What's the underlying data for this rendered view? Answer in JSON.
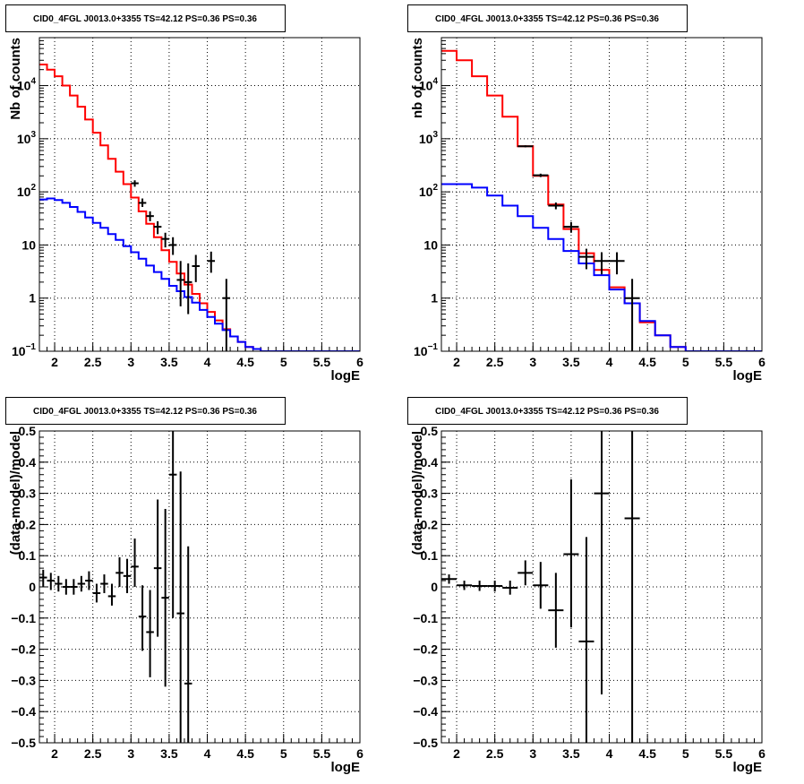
{
  "chart_data": [
    {
      "type": "line",
      "panel": "top-left",
      "title": "CID0_4FGL J0013.0+3355 TS=42.12 PS=0.36 PS=0.36",
      "xlabel": "logE",
      "ylabel": "Nb of counts",
      "y_scale": "log",
      "xlim": [
        1.8,
        6.0
      ],
      "ylim": [
        0.1,
        80000
      ],
      "grid": true,
      "x_ticks": [
        "2",
        "2.5",
        "3",
        "3.5",
        "4",
        "4.5",
        "5",
        "5.5",
        "6"
      ],
      "y_ticks": [
        {
          "base": "10",
          "exp": "−1",
          "v": 0.1
        },
        {
          "base": "1",
          "exp": "",
          "v": 1
        },
        {
          "base": "10",
          "exp": "",
          "v": 10
        },
        {
          "base": "10",
          "exp": "2",
          "v": 100
        },
        {
          "base": "10",
          "exp": "3",
          "v": 1000
        },
        {
          "base": "10",
          "exp": "4",
          "v": 10000
        }
      ],
      "series": [
        {
          "color": "#ff0000",
          "kind": "step",
          "edges": [
            1.8,
            1.9,
            2.0,
            2.1,
            2.2,
            2.3,
            2.4,
            2.5,
            2.6,
            2.7,
            2.8,
            2.9,
            3.0,
            3.1,
            3.2,
            3.3,
            3.4,
            3.5,
            3.6,
            3.7,
            3.8,
            3.9,
            4.0,
            4.1,
            4.2,
            4.3,
            4.4,
            4.5,
            4.6,
            4.7,
            4.8,
            4.9,
            5.0,
            5.1,
            5.2,
            5.3,
            5.4,
            5.5,
            5.6,
            5.7,
            5.8,
            5.9,
            6.0
          ],
          "values": [
            25000,
            20000,
            15000,
            10000,
            6500,
            4000,
            2300,
            1300,
            750,
            420,
            240,
            140,
            78,
            43,
            25,
            14,
            8,
            4.8,
            2.9,
            1.8,
            1.2,
            0.8,
            0.55,
            0.38,
            0.26,
            0.19,
            0.15,
            0.12,
            0.11,
            0.1,
            0.1,
            0.1,
            0.1,
            0.1,
            0.1,
            0.1,
            0.1,
            0.1,
            0.1,
            0.1,
            0.1,
            0.1
          ]
        },
        {
          "color": "#0000ff",
          "kind": "step",
          "edges": [
            1.8,
            1.9,
            2.0,
            2.1,
            2.2,
            2.3,
            2.4,
            2.5,
            2.6,
            2.7,
            2.8,
            2.9,
            3.0,
            3.1,
            3.2,
            3.3,
            3.4,
            3.5,
            3.6,
            3.7,
            3.8,
            3.9,
            4.0,
            4.1,
            4.2,
            4.3,
            4.4,
            4.5,
            4.6,
            4.7,
            4.8,
            4.9,
            5.0,
            5.1,
            5.2,
            5.3,
            5.4,
            5.5,
            5.6,
            5.7,
            5.8,
            5.9,
            6.0
          ],
          "values": [
            72,
            75,
            70,
            62,
            52,
            42,
            33,
            26,
            21,
            16,
            12.5,
            9.5,
            7.3,
            5.5,
            4.1,
            3.1,
            2.3,
            1.7,
            1.35,
            1.05,
            0.82,
            0.6,
            0.44,
            0.33,
            0.25,
            0.19,
            0.15,
            0.12,
            0.11,
            0.1,
            0.1,
            0.1,
            0.1,
            0.1,
            0.1,
            0.1,
            0.1,
            0.1,
            0.1,
            0.1,
            0.1,
            0.1
          ]
        },
        {
          "color": "#000000",
          "kind": "errorbars",
          "points": [
            {
              "x": 3.05,
              "y": 145,
              "xerr": 0.05,
              "ylo": 125,
              "yhi": 165
            },
            {
              "x": 3.15,
              "y": 62,
              "xerr": 0.05,
              "ylo": 52,
              "yhi": 75
            },
            {
              "x": 3.25,
              "y": 35,
              "xerr": 0.05,
              "ylo": 28,
              "yhi": 43
            },
            {
              "x": 3.35,
              "y": 22,
              "xerr": 0.05,
              "ylo": 16,
              "yhi": 28
            },
            {
              "x": 3.45,
              "y": 13,
              "xerr": 0.05,
              "ylo": 9,
              "yhi": 17
            },
            {
              "x": 3.55,
              "y": 10,
              "xerr": 0.05,
              "ylo": 6.5,
              "yhi": 14
            },
            {
              "x": 3.65,
              "y": 2.2,
              "xerr": 0.05,
              "ylo": 0.7,
              "yhi": 5.0
            },
            {
              "x": 3.75,
              "y": 2,
              "xerr": 0.05,
              "ylo": 0.5,
              "yhi": 4.5
            },
            {
              "x": 3.85,
              "y": 4,
              "xerr": 0.05,
              "ylo": 2.0,
              "yhi": 6.5
            },
            {
              "x": 4.05,
              "y": 5,
              "xerr": 0.05,
              "ylo": 3.0,
              "yhi": 7.5
            },
            {
              "x": 4.25,
              "y": 1,
              "xerr": 0.05,
              "ylo": 0.1,
              "yhi": 2.3
            }
          ]
        }
      ]
    },
    {
      "type": "line",
      "panel": "top-right",
      "title": "CID0_4FGL J0013.0+3355 TS=42.12 PS=0.36 PS=0.36",
      "xlabel": "logE",
      "ylabel": "nb of counts",
      "y_scale": "log",
      "xlim": [
        1.8,
        6.0
      ],
      "ylim": [
        0.1,
        80000
      ],
      "grid": true,
      "x_ticks": [
        "2",
        "2.5",
        "3",
        "3.5",
        "4",
        "4.5",
        "5",
        "5.5",
        "6"
      ],
      "y_ticks": [
        {
          "base": "10",
          "exp": "−1",
          "v": 0.1
        },
        {
          "base": "1",
          "exp": "",
          "v": 1
        },
        {
          "base": "10",
          "exp": "",
          "v": 10
        },
        {
          "base": "10",
          "exp": "2",
          "v": 100
        },
        {
          "base": "10",
          "exp": "3",
          "v": 1000
        },
        {
          "base": "10",
          "exp": "4",
          "v": 10000
        }
      ],
      "series": [
        {
          "color": "#ff0000",
          "kind": "step",
          "edges": [
            1.8,
            2.0,
            2.2,
            2.4,
            2.6,
            2.8,
            3.0,
            3.2,
            3.4,
            3.6,
            3.8,
            4.0,
            4.2,
            4.4,
            4.6,
            4.8,
            5.0,
            5.2,
            5.4,
            5.6,
            5.8,
            6.0
          ],
          "values": [
            45000,
            30000,
            15000,
            6500,
            2600,
            720,
            200,
            58,
            20,
            7,
            3.4,
            1.6,
            0.8,
            0.35,
            0.2,
            0.12,
            0.1,
            0.1,
            0.1,
            0.1,
            0.1
          ]
        },
        {
          "color": "#0000ff",
          "kind": "step",
          "edges": [
            1.8,
            2.0,
            2.2,
            2.4,
            2.6,
            2.8,
            3.0,
            3.2,
            3.4,
            3.6,
            3.8,
            4.0,
            4.2,
            4.4,
            4.6,
            4.8,
            5.0,
            5.2,
            5.4,
            5.6,
            5.8,
            6.0
          ],
          "values": [
            140,
            140,
            120,
            85,
            55,
            35,
            21,
            13,
            7.7,
            4.5,
            2.7,
            1.45,
            0.8,
            0.37,
            0.2,
            0.12,
            0.1,
            0.1,
            0.1,
            0.1,
            0.1
          ]
        },
        {
          "color": "#000000",
          "kind": "errorbars",
          "points": [
            {
              "x": 2.9,
              "y": 720,
              "xerr": 0.1,
              "ylo": 690,
              "yhi": 750
            },
            {
              "x": 3.1,
              "y": 205,
              "xerr": 0.1,
              "ylo": 190,
              "yhi": 220
            },
            {
              "x": 3.3,
              "y": 55,
              "xerr": 0.1,
              "ylo": 47,
              "yhi": 63
            },
            {
              "x": 3.5,
              "y": 22,
              "xerr": 0.1,
              "ylo": 17,
              "yhi": 27
            },
            {
              "x": 3.7,
              "y": 6,
              "xerr": 0.1,
              "ylo": 3.5,
              "yhi": 8.5
            },
            {
              "x": 3.9,
              "y": 5,
              "xerr": 0.1,
              "ylo": 2.8,
              "yhi": 7.3
            },
            {
              "x": 4.1,
              "y": 5,
              "xerr": 0.1,
              "ylo": 2.8,
              "yhi": 7.3
            },
            {
              "x": 4.3,
              "y": 1,
              "xerr": 0.1,
              "ylo": 0.1,
              "yhi": 2.3
            }
          ]
        }
      ]
    },
    {
      "type": "scatter",
      "panel": "bottom-left",
      "title": "CID0_4FGL J0013.0+3355 TS=42.12 PS=0.36 PS=0.36",
      "xlabel": "logE",
      "ylabel": "(data-model)/model",
      "xlim": [
        1.8,
        6.0
      ],
      "ylim": [
        -0.5,
        0.5
      ],
      "grid": true,
      "x_ticks": [
        "2",
        "2.5",
        "3",
        "3.5",
        "4",
        "4.5",
        "5",
        "5.5",
        "6"
      ],
      "y_ticks": [
        "−0.5",
        "−0.4",
        "−0.3",
        "−0.2",
        "−0.1",
        "0",
        "0.1",
        "0.2",
        "0.3",
        "0.4",
        "0.5"
      ],
      "series": [
        {
          "color": "#000000",
          "kind": "errorbars",
          "points": [
            {
              "x": 1.85,
              "y": 0.03,
              "xerr": 0.05,
              "ylo": 0.0,
              "yhi": 0.055
            },
            {
              "x": 1.95,
              "y": 0.02,
              "xerr": 0.05,
              "ylo": -0.01,
              "yhi": 0.045
            },
            {
              "x": 2.05,
              "y": 0.01,
              "xerr": 0.05,
              "ylo": -0.015,
              "yhi": 0.035
            },
            {
              "x": 2.15,
              "y": 0.0,
              "xerr": 0.05,
              "ylo": -0.025,
              "yhi": 0.025
            },
            {
              "x": 2.25,
              "y": 0.0,
              "xerr": 0.05,
              "ylo": -0.025,
              "yhi": 0.025
            },
            {
              "x": 2.35,
              "y": 0.01,
              "xerr": 0.05,
              "ylo": -0.015,
              "yhi": 0.035
            },
            {
              "x": 2.45,
              "y": 0.02,
              "xerr": 0.05,
              "ylo": -0.01,
              "yhi": 0.05
            },
            {
              "x": 2.55,
              "y": -0.02,
              "xerr": 0.05,
              "ylo": -0.05,
              "yhi": 0.01
            },
            {
              "x": 2.65,
              "y": 0.01,
              "xerr": 0.05,
              "ylo": -0.02,
              "yhi": 0.04
            },
            {
              "x": 2.75,
              "y": -0.03,
              "xerr": 0.05,
              "ylo": -0.06,
              "yhi": 0.01
            },
            {
              "x": 2.85,
              "y": 0.045,
              "xerr": 0.05,
              "ylo": 0.0,
              "yhi": 0.095
            },
            {
              "x": 2.95,
              "y": 0.035,
              "xerr": 0.05,
              "ylo": -0.02,
              "yhi": 0.09
            },
            {
              "x": 3.05,
              "y": 0.065,
              "xerr": 0.05,
              "ylo": 0.0,
              "yhi": 0.155
            },
            {
              "x": 3.15,
              "y": -0.095,
              "xerr": 0.05,
              "ylo": -0.205,
              "yhi": 0.005
            },
            {
              "x": 3.25,
              "y": -0.145,
              "xerr": 0.05,
              "ylo": -0.29,
              "yhi": -0.01
            },
            {
              "x": 3.35,
              "y": 0.06,
              "xerr": 0.05,
              "ylo": -0.16,
              "yhi": 0.28
            },
            {
              "x": 3.45,
              "y": -0.035,
              "xerr": 0.05,
              "ylo": -0.32,
              "yhi": 0.25
            },
            {
              "x": 3.55,
              "y": 0.36,
              "xerr": 0.05,
              "ylo": -0.1,
              "yhi": 0.5
            },
            {
              "x": 3.65,
              "y": -0.085,
              "xerr": 0.05,
              "ylo": -0.5,
              "yhi": 0.37
            },
            {
              "x": 3.75,
              "y": -0.31,
              "xerr": 0.05,
              "ylo": -0.5,
              "yhi": 0.13
            }
          ]
        }
      ]
    },
    {
      "type": "scatter",
      "panel": "bottom-right",
      "title": "CID0_4FGL J0013.0+3355 TS=42.12 PS=0.36 PS=0.36",
      "xlabel": "logE",
      "ylabel": "(data-model)/model",
      "xlim": [
        1.8,
        6.0
      ],
      "ylim": [
        -0.5,
        0.5
      ],
      "grid": true,
      "x_ticks": [
        "2",
        "2.5",
        "3",
        "3.5",
        "4",
        "4.5",
        "5",
        "5.5",
        "6"
      ],
      "y_ticks": [
        "−0.5",
        "−0.4",
        "−0.3",
        "−0.2",
        "−0.1",
        "0",
        "0.1",
        "0.2",
        "0.3",
        "0.4",
        "0.5"
      ],
      "series": [
        {
          "color": "#000000",
          "kind": "errorbars",
          "points": [
            {
              "x": 1.9,
              "y": 0.025,
              "xerr": 0.1,
              "ylo": 0.01,
              "yhi": 0.04
            },
            {
              "x": 2.1,
              "y": 0.005,
              "xerr": 0.1,
              "ylo": -0.01,
              "yhi": 0.02
            },
            {
              "x": 2.3,
              "y": 0.003,
              "xerr": 0.1,
              "ylo": -0.013,
              "yhi": 0.02
            },
            {
              "x": 2.5,
              "y": 0.003,
              "xerr": 0.1,
              "ylo": -0.015,
              "yhi": 0.02
            },
            {
              "x": 2.7,
              "y": -0.003,
              "xerr": 0.1,
              "ylo": -0.025,
              "yhi": 0.02
            },
            {
              "x": 2.9,
              "y": 0.045,
              "xerr": 0.1,
              "ylo": 0.005,
              "yhi": 0.085
            },
            {
              "x": 3.1,
              "y": 0.005,
              "xerr": 0.1,
              "ylo": -0.07,
              "yhi": 0.08
            },
            {
              "x": 3.3,
              "y": -0.075,
              "xerr": 0.1,
              "ylo": -0.195,
              "yhi": 0.045
            },
            {
              "x": 3.5,
              "y": 0.105,
              "xerr": 0.1,
              "ylo": -0.13,
              "yhi": 0.345
            },
            {
              "x": 3.7,
              "y": -0.175,
              "xerr": 0.1,
              "ylo": -0.5,
              "yhi": 0.16
            },
            {
              "x": 3.9,
              "y": 0.3,
              "xerr": 0.1,
              "ylo": -0.345,
              "yhi": 0.5
            },
            {
              "x": 4.3,
              "y": 0.22,
              "xerr": 0.1,
              "ylo": -0.5,
              "yhi": 0.5
            }
          ]
        }
      ]
    }
  ]
}
